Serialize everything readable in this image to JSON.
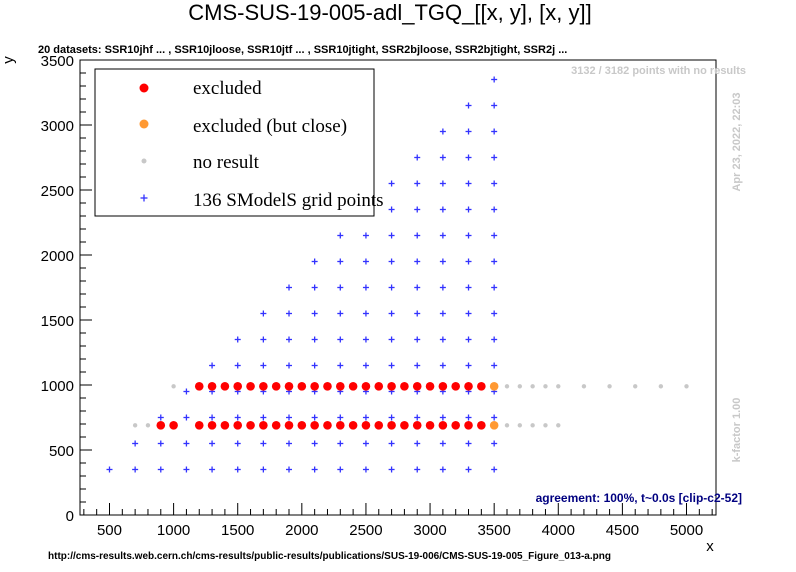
{
  "chart_data": {
    "type": "scatter",
    "title": "CMS-SUS-19-005-adl_TGQ_[[x, y], [x, y]]",
    "subtitle": "20 datasets: SSR10jhf ... , SSR10jloose, SSR10jtf ... , SSR10jtight, SSR2bjloose, SSR2bjtight, SSR2j ...",
    "xlabel": "x",
    "ylabel": "y",
    "xlim": [
      270,
      5230
    ],
    "ylim": [
      0,
      3500
    ],
    "xticks": [
      500,
      1000,
      1500,
      2000,
      2500,
      3000,
      3500,
      4000,
      4500,
      5000
    ],
    "yticks": [
      0,
      500,
      1000,
      1500,
      2000,
      2500,
      3000,
      3500
    ],
    "grid": false,
    "legend_position": "top-left",
    "legend": [
      {
        "label": "excluded",
        "color": "#ff0000",
        "marker": "circle"
      },
      {
        "label": "excluded (but close)",
        "color": "#ff9933",
        "marker": "circle"
      },
      {
        "label": "no result",
        "color": "#c8c8c8",
        "marker": "dot"
      },
      {
        "label": "136 SModelS grid points",
        "color": "#3333ff",
        "marker": "plus"
      }
    ],
    "annotations": {
      "points_info": "3132 / 3182 points with no results",
      "timestamp": "Apr 23, 2022, 22:03",
      "kfactor": "k-factor 1.00",
      "agreement": "agreement: 100%, t~0.0s [clip-c2-52]",
      "source_url": "http://cms-results.web.cern.ch/cms-results/public-results/publications/SUS-19-006/CMS-SUS-19-005_Figure_013-a.png"
    },
    "series": [
      {
        "name": "excluded",
        "color": "#ff0000",
        "points": [
          [
            900,
            690
          ],
          [
            1000,
            690
          ],
          [
            1200,
            690
          ],
          [
            1300,
            690
          ],
          [
            1400,
            690
          ],
          [
            1500,
            690
          ],
          [
            1600,
            690
          ],
          [
            1700,
            690
          ],
          [
            1800,
            690
          ],
          [
            1900,
            690
          ],
          [
            2000,
            690
          ],
          [
            2100,
            690
          ],
          [
            2200,
            690
          ],
          [
            2300,
            690
          ],
          [
            2400,
            690
          ],
          [
            2500,
            690
          ],
          [
            2600,
            690
          ],
          [
            2700,
            690
          ],
          [
            2800,
            690
          ],
          [
            2900,
            690
          ],
          [
            3000,
            690
          ],
          [
            3100,
            690
          ],
          [
            3200,
            690
          ],
          [
            3300,
            690
          ],
          [
            3400,
            690
          ],
          [
            1200,
            990
          ],
          [
            1300,
            990
          ],
          [
            1400,
            990
          ],
          [
            1500,
            990
          ],
          [
            1600,
            990
          ],
          [
            1700,
            990
          ],
          [
            1800,
            990
          ],
          [
            1900,
            990
          ],
          [
            2000,
            990
          ],
          [
            2100,
            990
          ],
          [
            2200,
            990
          ],
          [
            2300,
            990
          ],
          [
            2400,
            990
          ],
          [
            2500,
            990
          ],
          [
            2600,
            990
          ],
          [
            2700,
            990
          ],
          [
            2800,
            990
          ],
          [
            2900,
            990
          ],
          [
            3000,
            990
          ],
          [
            3100,
            990
          ],
          [
            3200,
            990
          ],
          [
            3300,
            990
          ],
          [
            3400,
            990
          ]
        ]
      },
      {
        "name": "excluded (but close)",
        "color": "#ff9933",
        "points": [
          [
            3500,
            690
          ],
          [
            3500,
            990
          ]
        ]
      },
      {
        "name": "no result",
        "color": "#c8c8c8",
        "points": [
          [
            700,
            690
          ],
          [
            800,
            690
          ],
          [
            3600,
            690
          ],
          [
            3700,
            690
          ],
          [
            3800,
            690
          ],
          [
            3900,
            690
          ],
          [
            4000,
            690
          ],
          [
            1000,
            990
          ],
          [
            3600,
            990
          ],
          [
            3700,
            990
          ],
          [
            3800,
            990
          ],
          [
            3900,
            990
          ],
          [
            4000,
            990
          ],
          [
            4200,
            990
          ],
          [
            4400,
            990
          ],
          [
            4600,
            990
          ],
          [
            4800,
            990
          ],
          [
            5000,
            990
          ]
        ]
      },
      {
        "name": "136 SModelS grid points",
        "color": "#3333ff",
        "points": [
          [
            500,
            350
          ],
          [
            700,
            350
          ],
          [
            900,
            350
          ],
          [
            1100,
            350
          ],
          [
            1300,
            350
          ],
          [
            1500,
            350
          ],
          [
            1700,
            350
          ],
          [
            1900,
            350
          ],
          [
            2100,
            350
          ],
          [
            2300,
            350
          ],
          [
            2500,
            350
          ],
          [
            2700,
            350
          ],
          [
            2900,
            350
          ],
          [
            3100,
            350
          ],
          [
            3300,
            350
          ],
          [
            3500,
            350
          ],
          [
            700,
            550
          ],
          [
            900,
            550
          ],
          [
            1100,
            550
          ],
          [
            1300,
            550
          ],
          [
            1500,
            550
          ],
          [
            1700,
            550
          ],
          [
            1900,
            550
          ],
          [
            2100,
            550
          ],
          [
            2300,
            550
          ],
          [
            2500,
            550
          ],
          [
            2700,
            550
          ],
          [
            2900,
            550
          ],
          [
            3100,
            550
          ],
          [
            3300,
            550
          ],
          [
            3500,
            550
          ],
          [
            900,
            750
          ],
          [
            1100,
            750
          ],
          [
            1300,
            750
          ],
          [
            1500,
            750
          ],
          [
            1700,
            750
          ],
          [
            1900,
            750
          ],
          [
            2100,
            750
          ],
          [
            2300,
            750
          ],
          [
            2500,
            750
          ],
          [
            2700,
            750
          ],
          [
            2900,
            750
          ],
          [
            3100,
            750
          ],
          [
            3300,
            750
          ],
          [
            3500,
            750
          ],
          [
            1100,
            950
          ],
          [
            1300,
            950
          ],
          [
            1500,
            950
          ],
          [
            1700,
            950
          ],
          [
            1900,
            950
          ],
          [
            2100,
            950
          ],
          [
            2300,
            950
          ],
          [
            2500,
            950
          ],
          [
            2700,
            950
          ],
          [
            2900,
            950
          ],
          [
            3100,
            950
          ],
          [
            3300,
            950
          ],
          [
            3500,
            950
          ],
          [
            1300,
            1150
          ],
          [
            1500,
            1150
          ],
          [
            1700,
            1150
          ],
          [
            1900,
            1150
          ],
          [
            2100,
            1150
          ],
          [
            2300,
            1150
          ],
          [
            2500,
            1150
          ],
          [
            2700,
            1150
          ],
          [
            2900,
            1150
          ],
          [
            3100,
            1150
          ],
          [
            3300,
            1150
          ],
          [
            3500,
            1150
          ],
          [
            1500,
            1350
          ],
          [
            1700,
            1350
          ],
          [
            1900,
            1350
          ],
          [
            2100,
            1350
          ],
          [
            2300,
            1350
          ],
          [
            2500,
            1350
          ],
          [
            2700,
            1350
          ],
          [
            2900,
            1350
          ],
          [
            3100,
            1350
          ],
          [
            3300,
            1350
          ],
          [
            3500,
            1350
          ],
          [
            1700,
            1550
          ],
          [
            1900,
            1550
          ],
          [
            2100,
            1550
          ],
          [
            2300,
            1550
          ],
          [
            2500,
            1550
          ],
          [
            2700,
            1550
          ],
          [
            2900,
            1550
          ],
          [
            3100,
            1550
          ],
          [
            3300,
            1550
          ],
          [
            3500,
            1550
          ],
          [
            1900,
            1750
          ],
          [
            2100,
            1750
          ],
          [
            2300,
            1750
          ],
          [
            2500,
            1750
          ],
          [
            2700,
            1750
          ],
          [
            2900,
            1750
          ],
          [
            3100,
            1750
          ],
          [
            3300,
            1750
          ],
          [
            3500,
            1750
          ],
          [
            2100,
            1950
          ],
          [
            2300,
            1950
          ],
          [
            2500,
            1950
          ],
          [
            2700,
            1950
          ],
          [
            2900,
            1950
          ],
          [
            3100,
            1950
          ],
          [
            3300,
            1950
          ],
          [
            3500,
            1950
          ],
          [
            2300,
            2150
          ],
          [
            2500,
            2150
          ],
          [
            2700,
            2150
          ],
          [
            2900,
            2150
          ],
          [
            3100,
            2150
          ],
          [
            3300,
            2150
          ],
          [
            3500,
            2150
          ],
          [
            2500,
            2350
          ],
          [
            2700,
            2350
          ],
          [
            2900,
            2350
          ],
          [
            3100,
            2350
          ],
          [
            3300,
            2350
          ],
          [
            3500,
            2350
          ],
          [
            2700,
            2550
          ],
          [
            2900,
            2550
          ],
          [
            3100,
            2550
          ],
          [
            3300,
            2550
          ],
          [
            3500,
            2550
          ],
          [
            2900,
            2750
          ],
          [
            3100,
            2750
          ],
          [
            3300,
            2750
          ],
          [
            3500,
            2750
          ],
          [
            3100,
            2950
          ],
          [
            3300,
            2950
          ],
          [
            3500,
            2950
          ],
          [
            3300,
            3150
          ],
          [
            3500,
            3150
          ],
          [
            3500,
            3350
          ]
        ]
      }
    ]
  }
}
